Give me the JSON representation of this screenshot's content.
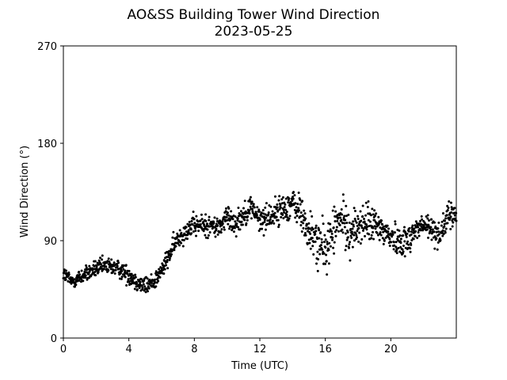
{
  "chart_data": {
    "type": "scatter",
    "title": "AO&SS Building Tower Wind Direction",
    "subtitle": "2023-05-25",
    "xlabel": "Time (UTC)",
    "ylabel": "Wind Direction (°)",
    "xlim": [
      0,
      24
    ],
    "ylim": [
      0,
      270
    ],
    "xticks": [
      0,
      4,
      8,
      12,
      16,
      20
    ],
    "yticks": [
      0,
      90,
      180,
      270
    ],
    "grid": false,
    "legend": "none",
    "marker_color": "#000000",
    "trend": {
      "x": [
        0,
        0.5,
        1,
        1.5,
        2,
        2.5,
        3,
        3.5,
        4,
        4.5,
        5,
        5.5,
        6,
        6.5,
        7,
        7.5,
        8,
        8.5,
        9,
        9.5,
        10,
        10.5,
        11,
        11.5,
        12,
        12.5,
        13,
        13.5,
        14,
        14.5,
        15,
        15.5,
        16,
        16.5,
        17,
        17.5,
        18,
        18.5,
        19,
        19.5,
        20,
        20.5,
        21,
        21.5,
        22,
        22.5,
        23,
        23.5,
        24
      ],
      "y": [
        60,
        52,
        56,
        60,
        64,
        66,
        66,
        63,
        58,
        52,
        48,
        52,
        62,
        78,
        92,
        100,
        104,
        104,
        104,
        102,
        112,
        106,
        114,
        122,
        108,
        112,
        116,
        120,
        124,
        116,
        96,
        90,
        80,
        100,
        110,
        96,
        104,
        106,
        104,
        100,
        94,
        90,
        90,
        100,
        104,
        100,
        96,
        112,
        114
      ]
    },
    "spread": {
      "x": [
        0,
        4,
        6,
        8,
        12,
        14,
        15,
        16,
        20,
        24
      ],
      "y": [
        5,
        6,
        6,
        7,
        8,
        10,
        14,
        16,
        10,
        8
      ]
    }
  }
}
